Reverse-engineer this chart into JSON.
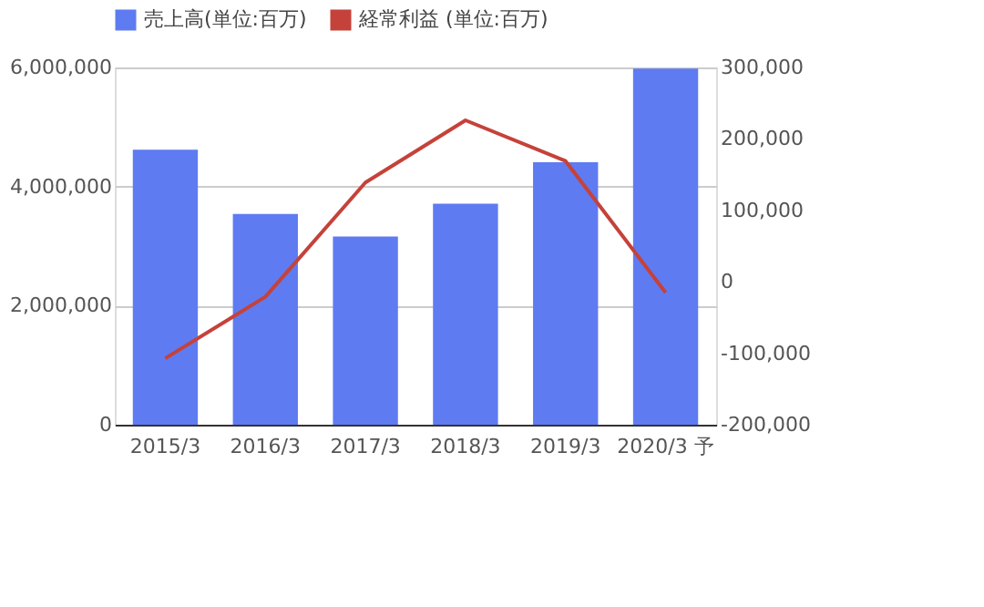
{
  "chart_data": {
    "type": "bar",
    "categories": [
      "2015/3",
      "2016/3",
      "2017/3",
      "2018/3",
      "2019/3",
      "2020/3 予"
    ],
    "series": [
      {
        "name": "売上高(単位:百万)",
        "color": "#5f7bf2",
        "values": [
          4620000,
          3540000,
          3160000,
          3710000,
          4410000,
          5980000
        ]
      },
      {
        "name": "経常利益 (単位:百万)",
        "type": "line",
        "axis": "y2",
        "color": "#c5423a",
        "values": [
          -107000,
          -21000,
          139000,
          226000,
          169000,
          -15000
        ]
      }
    ],
    "ylim": [
      0,
      6000000
    ],
    "yticks": [
      0,
      {
        "value": 2000000,
        "label": "2,000,000"
      },
      {
        "value": 4000000,
        "label": "4,000,000"
      },
      {
        "value": 6000000,
        "label": "6,000,000"
      }
    ],
    "y2lim": [
      -200000,
      300000
    ],
    "y2ticks": [
      {
        "value": -200000,
        "label": "-200,000"
      },
      {
        "value": -100000,
        "label": "-100,000"
      },
      0,
      {
        "value": 100000,
        "label": "100,000"
      },
      {
        "value": 200000,
        "label": "200,000"
      },
      {
        "value": 300000,
        "label": "300,000"
      }
    ],
    "grid": "y",
    "legend": "top",
    "marker": "none",
    "line_style": "solid"
  }
}
